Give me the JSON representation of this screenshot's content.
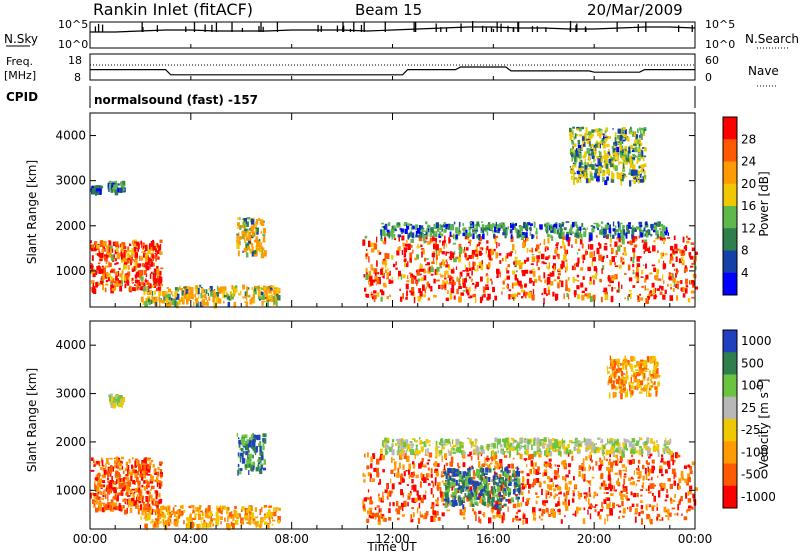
{
  "header": {
    "station": "Rankin Inlet (fitACF)",
    "beam": "Beam 15",
    "date": "20/Mar/2009"
  },
  "noise_panel": {
    "left_label": "N.Sky",
    "left_ticks": [
      "10^5",
      "10^0"
    ],
    "right_ticks": [
      "10^5",
      "10^0"
    ],
    "right_label": "N.Search"
  },
  "freq_panel": {
    "left_label_line1": "Freq.",
    "left_label_line2": "[MHz]",
    "left_ticks": [
      "18",
      "8"
    ],
    "right_ticks": [
      "60",
      "0"
    ],
    "right_label": "Nave"
  },
  "cpid": {
    "label": "CPID",
    "value": "normalsound (fast) -157"
  },
  "x_axis": {
    "ticks": [
      "00:00",
      "04:00",
      "08:00",
      "12:00",
      "16:00",
      "20:00",
      "00:00"
    ],
    "tick_hours": [
      0,
      4,
      8,
      12,
      16,
      20,
      24
    ],
    "label": "Time UT",
    "range": [
      0,
      24
    ]
  },
  "power_panel": {
    "ylabel": "Slant Range [km]",
    "yticks": [
      1000,
      2000,
      3000,
      4000
    ],
    "ylim": [
      200,
      4500
    ],
    "colorbar_label": "Power [dB]",
    "colorbar_ticks": [
      "28",
      "24",
      "20",
      "16",
      "12",
      "8",
      "4"
    ],
    "colorbar_colors": [
      "#ff0000",
      "#ff5a00",
      "#ff9a00",
      "#f0c800",
      "#5fb84c",
      "#2f7f4c",
      "#1440a8",
      "#0000ff"
    ]
  },
  "velocity_panel": {
    "ylabel": "Slant Range [km]",
    "yticks": [
      1000,
      2000,
      3000,
      4000
    ],
    "ylim": [
      200,
      4500
    ],
    "colorbar_label": "Velocity [m s^-1]",
    "colorbar_ticks": [
      "1000",
      "500",
      "100",
      "25",
      "-25",
      "-100",
      "-500",
      "-1000"
    ],
    "colorbar_colors": [
      "#2040c0",
      "#2f7f4c",
      "#6ac440",
      "#b8b8b8",
      "#f0c800",
      "#ff9a00",
      "#ff5a00",
      "#ff0000"
    ]
  },
  "chart_data": [
    {
      "type": "line",
      "title": "N.Sky / N.Search",
      "x": [
        0,
        1,
        2,
        3,
        4,
        5,
        6,
        7,
        8,
        9,
        10,
        11,
        12,
        13,
        14,
        15,
        16,
        17,
        18,
        19,
        20,
        21,
        22,
        23,
        24
      ],
      "series": [
        {
          "name": "N.Sky",
          "values": [
            0.8,
            0.8,
            0.85,
            0.9,
            0.9,
            0.85,
            0.85,
            0.85,
            0.9,
            0.9,
            0.9,
            0.85,
            0.9,
            0.95,
            1.0,
            1.05,
            1.05,
            1.0,
            1.0,
            0.95,
            0.95,
            1.0,
            1.05,
            1.05,
            1.0
          ]
        }
      ]
    },
    {
      "type": "line",
      "title": "Freq. / Nave",
      "x": [
        0,
        3,
        3.2,
        12.4,
        12.6,
        14.5,
        14.7,
        16.5,
        16.7,
        19.8,
        20.0,
        21.8,
        22.0,
        24
      ],
      "series": [
        {
          "name": "Freq.",
          "values": [
            12,
            12,
            10,
            10,
            12,
            12,
            13,
            13,
            11.5,
            11.5,
            11,
            11,
            12,
            12
          ]
        },
        {
          "name": "Nave",
          "values": [
            30,
            30,
            30,
            30,
            30,
            30,
            30,
            30,
            30,
            30,
            30,
            30,
            30,
            30
          ]
        }
      ]
    },
    {
      "type": "heatmap",
      "title": "Power [dB]",
      "xlabel": "Time UT",
      "ylabel": "Slant Range [km]",
      "xlim": [
        0,
        24
      ],
      "ylim": [
        200,
        4500
      ],
      "regions": [
        {
          "t": [
            0.0,
            2.8
          ],
          "r": [
            600,
            1700
          ],
          "peak_db": 28
        },
        {
          "t": [
            0.7,
            1.3
          ],
          "r": [
            2800,
            3000
          ],
          "peak_db": 12
        },
        {
          "t": [
            0.0,
            0.4
          ],
          "r": [
            2800,
            2900
          ],
          "peak_db": 8
        },
        {
          "t": [
            2.0,
            7.5
          ],
          "r": [
            300,
            700
          ],
          "peak_db": 20
        },
        {
          "t": [
            5.8,
            6.9
          ],
          "r": [
            1400,
            2200
          ],
          "peak_db": 20
        },
        {
          "t": [
            10.8,
            24.0
          ],
          "r": [
            400,
            1800
          ],
          "peak_db": 28
        },
        {
          "t": [
            11.5,
            23.0
          ],
          "r": [
            1800,
            2100
          ],
          "peak_db": 12
        },
        {
          "t": [
            19.0,
            22.0
          ],
          "r": [
            3000,
            4200
          ],
          "peak_db": 16
        }
      ]
    },
    {
      "type": "heatmap",
      "title": "Velocity [m s^-1]",
      "xlabel": "Time UT",
      "ylabel": "Slant Range [km]",
      "xlim": [
        0,
        24
      ],
      "ylim": [
        200,
        4500
      ],
      "regions": [
        {
          "t": [
            0.0,
            2.8
          ],
          "r": [
            600,
            1700
          ],
          "velocity": -500
        },
        {
          "t": [
            0.7,
            1.3
          ],
          "r": [
            2800,
            3000
          ],
          "velocity": 25
        },
        {
          "t": [
            2.0,
            7.5
          ],
          "r": [
            300,
            700
          ],
          "velocity": -100
        },
        {
          "t": [
            5.8,
            6.9
          ],
          "r": [
            1400,
            2200
          ],
          "velocity": 500
        },
        {
          "t": [
            10.8,
            24.0
          ],
          "r": [
            400,
            1800
          ],
          "velocity": -500
        },
        {
          "t": [
            11.5,
            23.0
          ],
          "r": [
            1800,
            2100
          ],
          "velocity": 25
        },
        {
          "t": [
            14.0,
            17.0
          ],
          "r": [
            700,
            1500
          ],
          "velocity": 500
        },
        {
          "t": [
            20.5,
            22.5
          ],
          "r": [
            3000,
            3800
          ],
          "velocity": -100
        }
      ]
    }
  ]
}
